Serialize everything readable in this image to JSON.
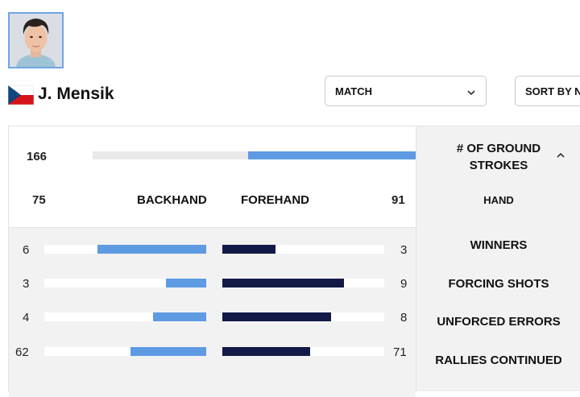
{
  "player": {
    "name": "J. Mensik"
  },
  "filters": {
    "period_select": "MATCH",
    "sort_select": "SORT BY NO"
  },
  "summary": {
    "total": "166",
    "total_fraction": 0.52,
    "backhand_total": "75",
    "forehand_total": "91"
  },
  "columns": {
    "backhand": "BACKHAND",
    "forehand": "FOREHAND"
  },
  "side": {
    "header": "# OF GROUND STROKES",
    "hand_label": "HAND"
  },
  "rows": [
    {
      "label": "WINNERS",
      "backhand": "6",
      "forehand": "3",
      "bh_fraction": 0.67,
      "fh_fraction": 0.33
    },
    {
      "label": "FORCING SHOTS",
      "backhand": "3",
      "forehand": "9",
      "bh_fraction": 0.25,
      "fh_fraction": 0.75
    },
    {
      "label": "UNFORCED ERRORS",
      "backhand": "4",
      "forehand": "8",
      "bh_fraction": 0.33,
      "fh_fraction": 0.67
    },
    {
      "label": "RALLIES CONTINUED",
      "backhand": "62",
      "forehand": "71",
      "bh_fraction": 0.47,
      "fh_fraction": 0.54
    }
  ],
  "colors": {
    "backhand_bar": "#5e9be3",
    "forehand_bar": "#141a47",
    "accent_border": "#6fa5e6"
  },
  "icons": {
    "select_chevron": "chevron-down-icon",
    "collapse_chevron": "chevron-up-icon"
  }
}
